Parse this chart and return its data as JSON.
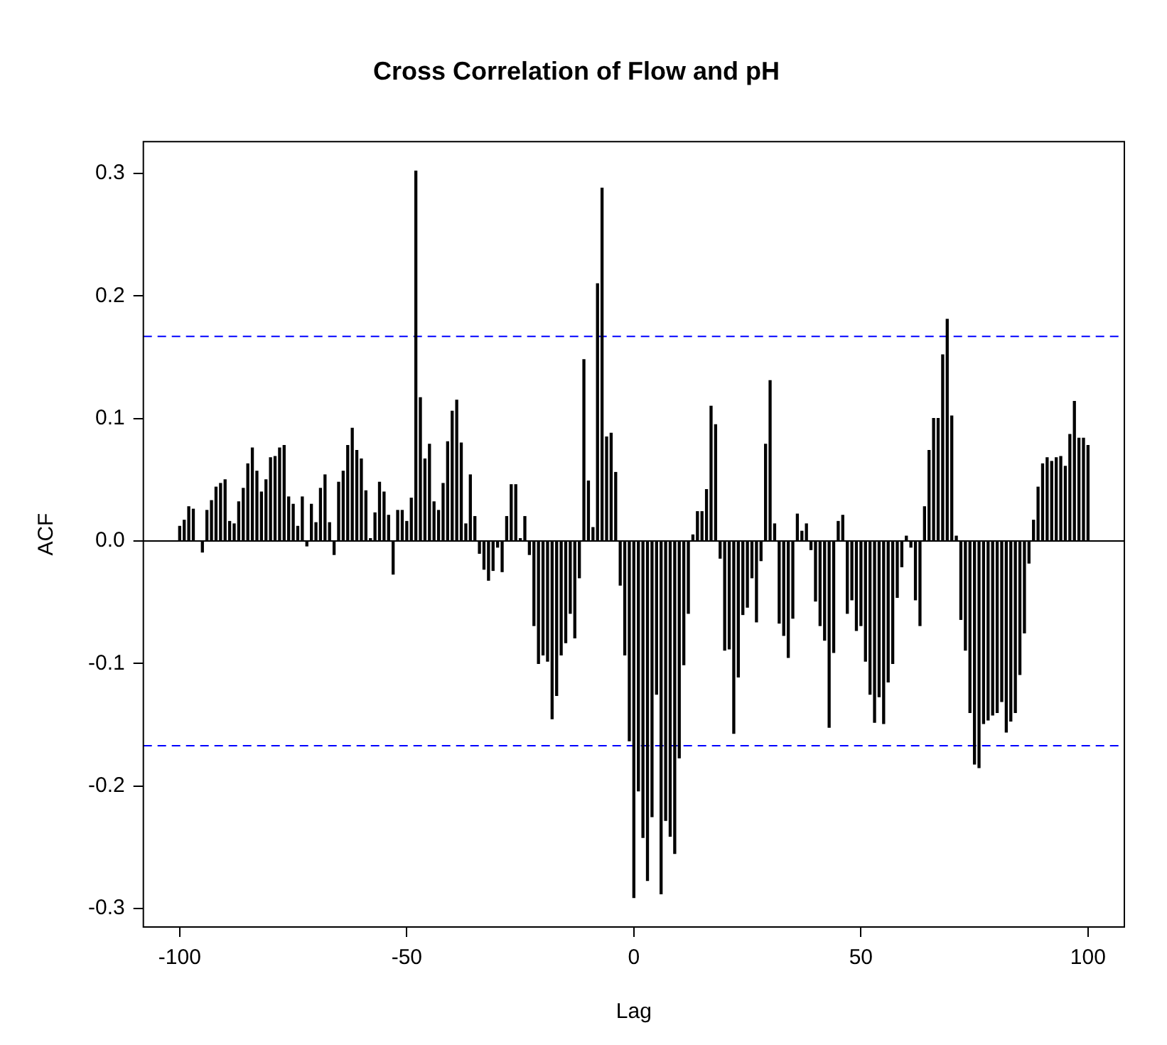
{
  "chart_data": {
    "type": "bar",
    "title": "Cross Correlation of Flow and pH",
    "xlabel": "Lag",
    "ylabel": "ACF",
    "x": [
      -100,
      -99,
      -98,
      -97,
      -96,
      -95,
      -94,
      -93,
      -92,
      -91,
      -90,
      -89,
      -88,
      -87,
      -86,
      -85,
      -84,
      -83,
      -82,
      -81,
      -80,
      -79,
      -78,
      -77,
      -76,
      -75,
      -74,
      -73,
      -72,
      -71,
      -70,
      -69,
      -68,
      -67,
      -66,
      -65,
      -64,
      -63,
      -62,
      -61,
      -60,
      -59,
      -58,
      -57,
      -56,
      -55,
      -54,
      -53,
      -52,
      -51,
      -50,
      -49,
      -48,
      -47,
      -46,
      -45,
      -44,
      -43,
      -42,
      -41,
      -40,
      -39,
      -38,
      -37,
      -36,
      -35,
      -34,
      -33,
      -32,
      -31,
      -30,
      -29,
      -28,
      -27,
      -26,
      -25,
      -24,
      -23,
      -22,
      -21,
      -20,
      -19,
      -18,
      -17,
      -16,
      -15,
      -14,
      -13,
      -12,
      -11,
      -10,
      -9,
      -8,
      -7,
      -6,
      -5,
      -4,
      -3,
      -2,
      -1,
      0,
      1,
      2,
      3,
      4,
      5,
      6,
      7,
      8,
      9,
      10,
      11,
      12,
      13,
      14,
      15,
      16,
      17,
      18,
      19,
      20,
      21,
      22,
      23,
      24,
      25,
      26,
      27,
      28,
      29,
      30,
      31,
      32,
      33,
      34,
      35,
      36,
      37,
      38,
      39,
      40,
      41,
      42,
      43,
      44,
      45,
      46,
      47,
      48,
      49,
      50,
      51,
      52,
      53,
      54,
      55,
      56,
      57,
      58,
      59,
      60,
      61,
      62,
      63,
      64,
      65,
      66,
      67,
      68,
      69,
      70,
      71,
      72,
      73,
      74,
      75,
      76,
      77,
      78,
      79,
      80,
      81,
      82,
      83,
      84,
      85,
      86,
      87,
      88,
      89,
      90,
      91,
      92,
      93,
      94,
      95,
      96,
      97,
      98,
      99,
      100
    ],
    "values": [
      0.012,
      0.017,
      0.028,
      0.026,
      0.0,
      -0.009,
      0.025,
      0.033,
      0.044,
      0.047,
      0.05,
      0.016,
      0.014,
      0.032,
      0.043,
      0.063,
      0.076,
      0.057,
      0.04,
      0.05,
      0.068,
      0.069,
      0.076,
      0.078,
      0.036,
      0.03,
      0.012,
      0.036,
      -0.004,
      0.03,
      0.015,
      0.043,
      0.054,
      0.015,
      -0.011,
      0.048,
      0.057,
      0.078,
      0.092,
      0.074,
      0.067,
      0.041,
      0.002,
      0.023,
      0.048,
      0.04,
      0.021,
      -0.027,
      0.025,
      0.025,
      0.016,
      0.035,
      0.302,
      0.117,
      0.067,
      0.079,
      0.032,
      0.025,
      0.047,
      0.081,
      0.106,
      0.115,
      0.08,
      0.014,
      0.054,
      0.02,
      -0.01,
      -0.023,
      -0.032,
      -0.024,
      -0.005,
      -0.025,
      0.02,
      0.046,
      0.046,
      0.002,
      0.02,
      -0.011,
      -0.069,
      -0.1,
      -0.093,
      -0.098,
      -0.145,
      -0.126,
      -0.093,
      -0.083,
      -0.059,
      -0.079,
      -0.03,
      0.148,
      0.049,
      0.011,
      0.21,
      0.288,
      0.085,
      0.088,
      0.056,
      -0.036,
      -0.093,
      -0.163,
      -0.291,
      -0.204,
      -0.242,
      -0.277,
      -0.225,
      -0.125,
      -0.288,
      -0.228,
      -0.241,
      -0.255,
      -0.177,
      -0.101,
      -0.059,
      0.005,
      0.024,
      0.024,
      0.042,
      0.11,
      0.095,
      -0.014,
      -0.089,
      -0.088,
      -0.157,
      -0.111,
      -0.06,
      -0.054,
      -0.03,
      -0.066,
      -0.016,
      0.079,
      0.131,
      0.014,
      -0.067,
      -0.077,
      -0.095,
      -0.063,
      0.022,
      0.008,
      0.014,
      -0.007,
      -0.049,
      -0.069,
      -0.081,
      -0.152,
      -0.091,
      0.016,
      0.021,
      -0.059,
      -0.048,
      -0.073,
      -0.069,
      -0.098,
      -0.125,
      -0.148,
      -0.127,
      -0.149,
      -0.115,
      -0.1,
      -0.046,
      -0.021,
      0.004,
      -0.005,
      -0.048,
      -0.069,
      0.028,
      0.074,
      0.1,
      0.1,
      0.152,
      0.181,
      0.102,
      0.004,
      -0.064,
      -0.089,
      -0.14,
      -0.182,
      -0.185,
      -0.149,
      -0.146,
      -0.142,
      -0.14,
      -0.131,
      -0.156,
      -0.147,
      -0.14,
      -0.109,
      -0.075,
      -0.018,
      0.017,
      0.044,
      0.063,
      0.068,
      0.065,
      0.068,
      0.069,
      0.061,
      0.087,
      0.114,
      0.084,
      0.084,
      0.078
    ],
    "color": "#000000",
    "xlim": [
      -108,
      108
    ],
    "xticks": [
      -100,
      -50,
      0,
      50,
      100
    ],
    "ylim": [
      -0.315,
      0.326
    ],
    "yticks": [
      -0.3,
      -0.2,
      -0.1,
      {
        "value": 0,
        "label": "0.0"
      },
      0.1,
      0.2,
      0.3
    ],
    "ref_lines": [
      {
        "axis": "y",
        "value": 0,
        "color": "#000000",
        "line_style": "solid"
      },
      {
        "axis": "y",
        "value": 0.167,
        "color": "#0000ff",
        "line_style": "dashed"
      },
      {
        "axis": "y",
        "value": -0.167,
        "color": "#0000ff",
        "line_style": "dashed"
      }
    ],
    "grid": false,
    "legend": false
  }
}
